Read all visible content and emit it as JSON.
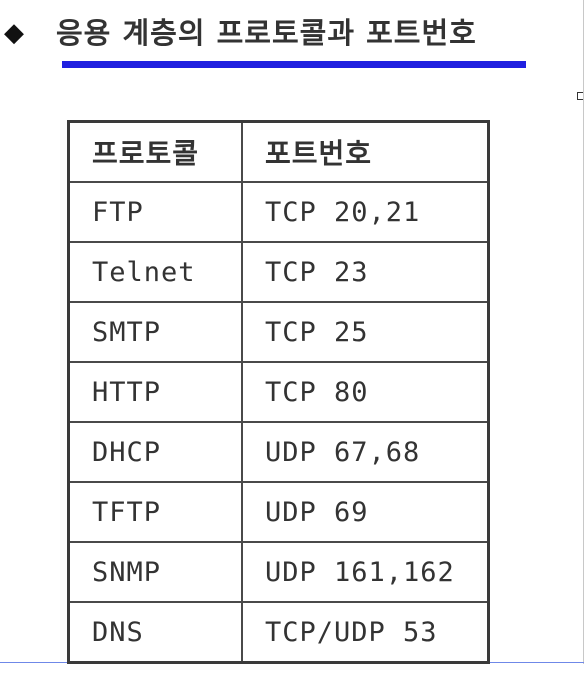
{
  "heading": {
    "bullet": "◆",
    "text": "응용 계층의 프로토콜과 포트번호"
  },
  "table": {
    "headers": [
      "프로토콜",
      "포트번호"
    ],
    "rows": [
      [
        "FTP",
        "TCP 20,21"
      ],
      [
        "Telnet",
        "TCP 23"
      ],
      [
        "SMTP",
        "TCP 25"
      ],
      [
        "HTTP",
        "TCP 80"
      ],
      [
        "DHCP",
        "UDP 67,68"
      ],
      [
        "TFTP",
        "UDP 69"
      ],
      [
        "SNMP",
        "UDP 161,162"
      ],
      [
        "DNS",
        "TCP/UDP 53"
      ]
    ]
  },
  "colors": {
    "underline": "#2020e0",
    "border": "#3a3a3a",
    "text": "#333333"
  }
}
